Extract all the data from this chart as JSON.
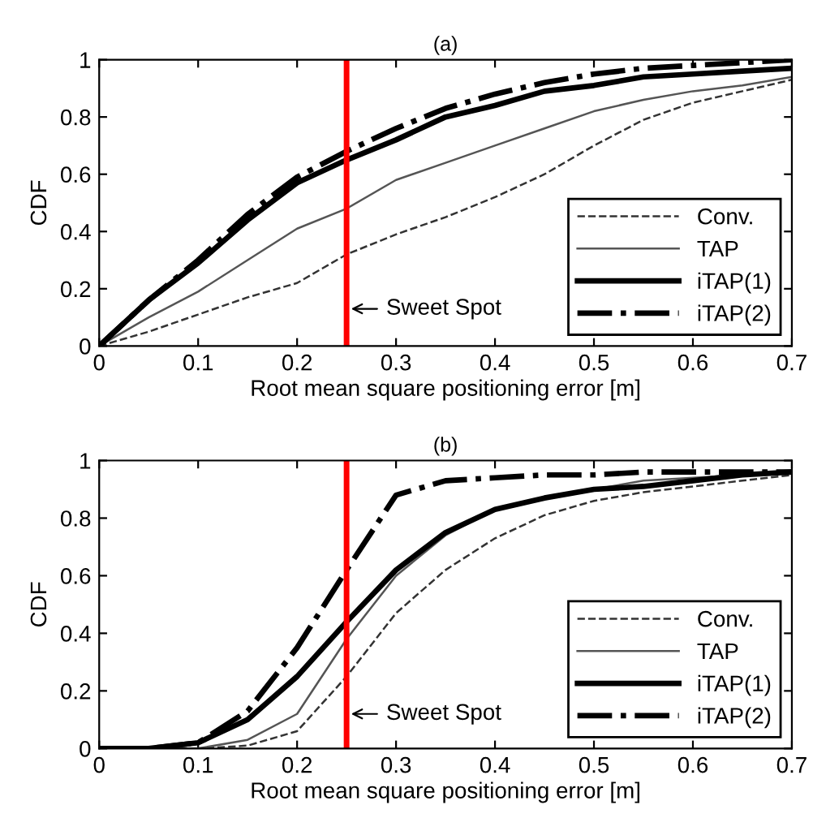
{
  "chart_data": [
    {
      "type": "line",
      "title": "(a)",
      "xlabel": "Root mean square positioning error [m]",
      "ylabel": "CDF",
      "x": [
        0,
        0.05,
        0.1,
        0.15,
        0.2,
        0.25,
        0.3,
        0.35,
        0.4,
        0.45,
        0.5,
        0.55,
        0.6,
        0.65,
        0.7
      ],
      "series": [
        {
          "name": "Conv.",
          "color": "#333333",
          "line_style": "dashed",
          "values": [
            0,
            0.05,
            0.11,
            0.17,
            0.22,
            0.32,
            0.39,
            0.45,
            0.52,
            0.6,
            0.7,
            0.79,
            0.85,
            0.89,
            0.93
          ]
        },
        {
          "name": "TAP",
          "color": "#555555",
          "line_style": "solid",
          "values": [
            0,
            0.1,
            0.19,
            0.3,
            0.41,
            0.48,
            0.58,
            0.64,
            0.7,
            0.76,
            0.82,
            0.86,
            0.89,
            0.91,
            0.94
          ]
        },
        {
          "name": "iTAP(1)",
          "color": "#000000",
          "line_style": "solid",
          "values": [
            0,
            0.16,
            0.29,
            0.44,
            0.57,
            0.65,
            0.72,
            0.8,
            0.84,
            0.89,
            0.91,
            0.94,
            0.95,
            0.96,
            0.97
          ]
        },
        {
          "name": "iTAP(2)",
          "color": "#000000",
          "line_style": "dashdot",
          "values": [
            0,
            0.16,
            0.3,
            0.46,
            0.59,
            0.68,
            0.76,
            0.83,
            0.88,
            0.92,
            0.95,
            0.97,
            0.98,
            0.99,
            1.0
          ]
        }
      ],
      "xlim": [
        0,
        0.7
      ],
      "xticks": [
        0,
        0.1,
        0.2,
        0.3,
        0.4,
        0.5,
        0.6,
        0.7
      ],
      "ylim": [
        0,
        1
      ],
      "yticks": [
        0,
        0.2,
        0.4,
        0.6,
        0.8,
        1
      ],
      "ref_lines": [
        {
          "axis": "x",
          "value": 0.25,
          "color": "#ff0000"
        }
      ],
      "annotations": [
        {
          "text": "Sweet Spot",
          "x": 0.25,
          "y": 0.13
        }
      ],
      "legend": "bottom right",
      "grid": false
    },
    {
      "type": "line",
      "title": "(b)",
      "xlabel": "Root mean square positioning error [m]",
      "ylabel": "CDF",
      "x": [
        0,
        0.05,
        0.1,
        0.15,
        0.2,
        0.25,
        0.3,
        0.35,
        0.4,
        0.45,
        0.5,
        0.55,
        0.6,
        0.65,
        0.7
      ],
      "series": [
        {
          "name": "Conv.",
          "color": "#333333",
          "line_style": "dashed",
          "values": [
            0,
            0,
            0,
            0.01,
            0.06,
            0.25,
            0.47,
            0.62,
            0.73,
            0.81,
            0.86,
            0.89,
            0.91,
            0.93,
            0.95
          ]
        },
        {
          "name": "TAP",
          "color": "#555555",
          "line_style": "solid",
          "values": [
            0,
            0,
            0,
            0.03,
            0.12,
            0.38,
            0.6,
            0.74,
            0.83,
            0.87,
            0.9,
            0.93,
            0.94,
            0.95,
            0.96
          ]
        },
        {
          "name": "iTAP(1)",
          "color": "#000000",
          "line_style": "solid",
          "values": [
            0,
            0,
            0.02,
            0.1,
            0.25,
            0.44,
            0.62,
            0.75,
            0.83,
            0.87,
            0.9,
            0.91,
            0.93,
            0.95,
            0.96
          ]
        },
        {
          "name": "iTAP(2)",
          "color": "#000000",
          "line_style": "dashdot",
          "values": [
            0,
            0,
            0.02,
            0.13,
            0.35,
            0.62,
            0.88,
            0.93,
            0.94,
            0.95,
            0.95,
            0.96,
            0.96,
            0.96,
            0.96
          ]
        }
      ],
      "xlim": [
        0,
        0.7
      ],
      "xticks": [
        0,
        0.1,
        0.2,
        0.3,
        0.4,
        0.5,
        0.6,
        0.7
      ],
      "ylim": [
        0,
        1
      ],
      "yticks": [
        0,
        0.2,
        0.4,
        0.6,
        0.8,
        1
      ],
      "ref_lines": [
        {
          "axis": "x",
          "value": 0.25,
          "color": "#ff0000"
        }
      ],
      "annotations": [
        {
          "text": "Sweet Spot",
          "x": 0.25,
          "y": 0.12
        }
      ],
      "legend": "bottom right",
      "grid": false
    }
  ]
}
